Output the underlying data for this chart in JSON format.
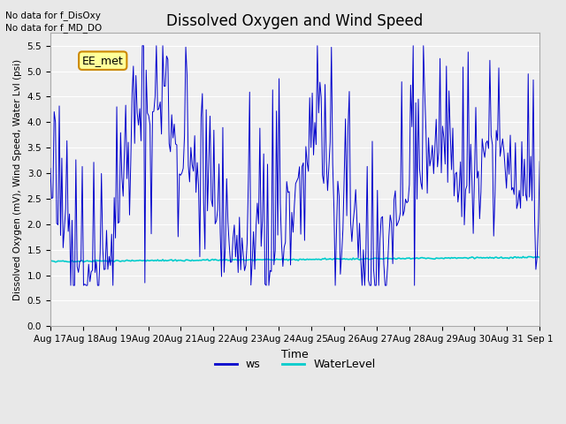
{
  "title": "Dissolved Oxygen and Wind Speed",
  "ylabel": "Dissolved Oxygen (mV), Wind Speed, Water Lvl (psi)",
  "xlabel": "Time",
  "ylim": [
    0.0,
    5.75
  ],
  "yticks": [
    0.0,
    0.5,
    1.0,
    1.5,
    2.0,
    2.5,
    3.0,
    3.5,
    4.0,
    4.5,
    5.0,
    5.5
  ],
  "text_no_data1": "No data for f_DisOxy",
  "text_no_data2": "No data for f_MD_DO",
  "annotation_box": "EE_met",
  "x_tick_labels": [
    "Aug 17",
    "Aug 18",
    "Aug 19",
    "Aug 20",
    "Aug 21",
    "Aug 22",
    "Aug 23",
    "Aug 24",
    "Aug 25",
    "Aug 26",
    "Aug 27",
    "Aug 28",
    "Aug 29",
    "Aug 30",
    "Aug 31",
    "Sep 1"
  ],
  "ws_color": "#0000cc",
  "water_level_color": "#00cccc",
  "background_color": "#e8e8e8",
  "plot_bg_color": "#f0f0f0",
  "grid_color": "#ffffff",
  "seed": 42,
  "n_days": 16,
  "n_points": 384
}
